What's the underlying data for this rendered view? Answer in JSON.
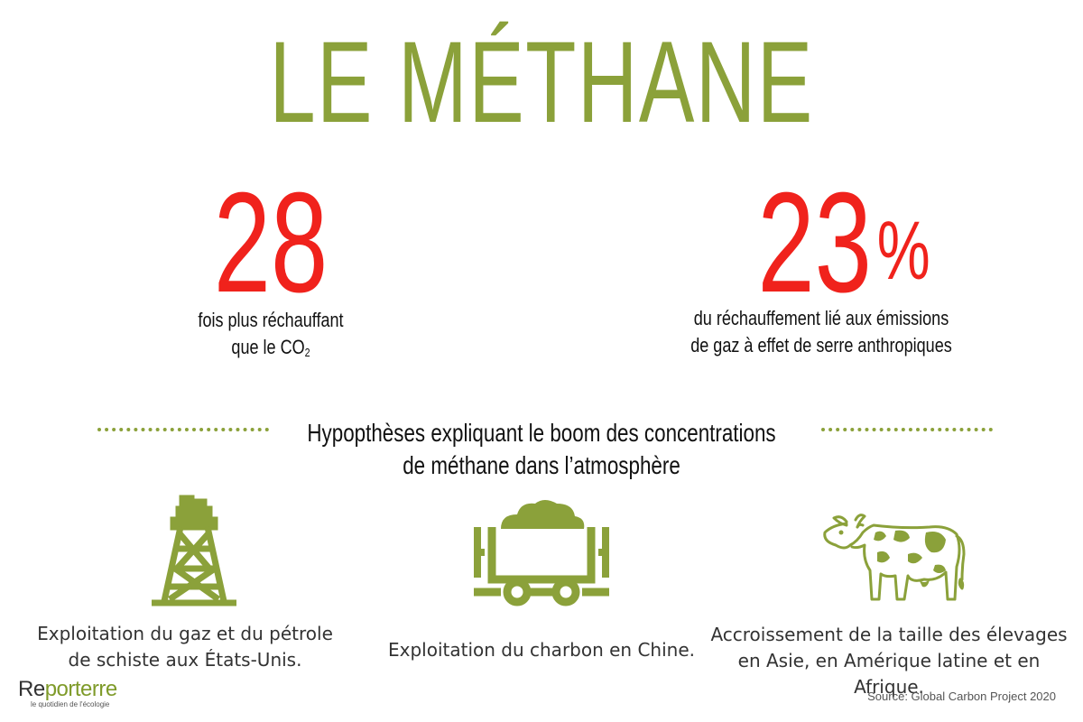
{
  "title": "LE MÉTHANE",
  "stats": [
    {
      "value": "28",
      "unit": "",
      "text_line1": "fois plus réchauffant",
      "text_line2_prefix": "que le CO",
      "text_line2_sub": "2"
    },
    {
      "value": "23",
      "unit": "%",
      "text_line1": "du réchauffement lié aux émissions",
      "text_line2": "de gaz à effet de serre anthropiques"
    }
  ],
  "section_title_line1": "Hypopthèses expliquant le boom des concentrations",
  "section_title_line2": "de méthane dans l’atmosphère",
  "hypotheses": [
    {
      "icon": "oil-derrick-icon",
      "line1": "Exploitation du gaz et du pétrole",
      "line2": "de schiste aux États-Unis."
    },
    {
      "icon": "coal-cart-icon",
      "line1": "Exploitation du charbon en Chine.",
      "line2": ""
    },
    {
      "icon": "cow-icon",
      "line1": "Accroissement de la taille des élevages",
      "line2": "en Asie, en Amérique latine et en Afrique."
    }
  ],
  "logo": {
    "part1": "Re",
    "part2": "porterre",
    "tagline": "le quotidien de l'écologie"
  },
  "source": "Source: Global Carbon Project 2020",
  "colors": {
    "accent_green": "#8ba13a",
    "stat_red": "#f0221c",
    "text": "#111111"
  }
}
